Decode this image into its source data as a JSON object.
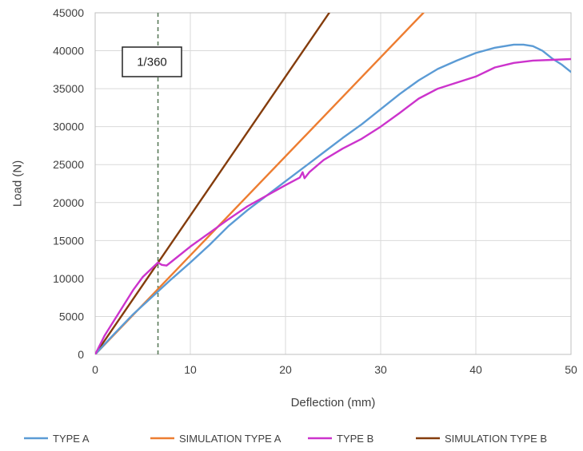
{
  "chart_data": {
    "type": "line",
    "title": "",
    "xlabel": "Deflection (mm)",
    "ylabel": "Load (N)",
    "xlim": [
      0,
      50
    ],
    "ylim": [
      0,
      45000
    ],
    "xticks": [
      0,
      10,
      20,
      30,
      40,
      50
    ],
    "yticks": [
      0,
      5000,
      10000,
      15000,
      20000,
      25000,
      30000,
      35000,
      40000,
      45000
    ],
    "grid": true,
    "legend_position": "bottom",
    "annotation": {
      "label": "1/360",
      "x": 6.6
    },
    "series": [
      {
        "name": "TYPE A",
        "color": "#5b9bd5",
        "x": [
          0,
          2,
          4,
          6,
          8,
          10,
          12,
          14,
          16,
          18,
          20,
          22,
          24,
          26,
          28,
          30,
          32,
          34,
          36,
          38,
          40,
          42,
          44,
          45,
          46,
          47,
          48,
          49,
          50
        ],
        "y": [
          0,
          2700,
          5300,
          7600,
          9900,
          12100,
          14400,
          16900,
          19000,
          20900,
          22800,
          24700,
          26600,
          28500,
          30300,
          32300,
          34300,
          36100,
          37600,
          38700,
          39700,
          40400,
          40800,
          40800,
          40600,
          40000,
          39000,
          38200,
          37200
        ]
      },
      {
        "name": "SIMULATION TYPE A",
        "color": "#ed7d31",
        "x": [
          0,
          34.5
        ],
        "y": [
          0,
          45000
        ]
      },
      {
        "name": "TYPE B",
        "color": "#cc33cc",
        "x": [
          0,
          1,
          2,
          3,
          4,
          5,
          6,
          6.6,
          7,
          7.5,
          8,
          10,
          12,
          14,
          16,
          18,
          20,
          21.5,
          21.8,
          22,
          22.5,
          24,
          26,
          28,
          30,
          32,
          34,
          36,
          38,
          40,
          42,
          44,
          46,
          48,
          50
        ],
        "y": [
          0,
          2500,
          4500,
          6500,
          8500,
          10200,
          11400,
          12100,
          11800,
          11700,
          12200,
          14200,
          16000,
          17800,
          19500,
          20900,
          22300,
          23300,
          24000,
          23200,
          24000,
          25600,
          27100,
          28400,
          30000,
          31800,
          33700,
          35000,
          35800,
          36600,
          37800,
          38400,
          38700,
          38800,
          38900
        ]
      },
      {
        "name": "SIMULATION TYPE B",
        "color": "#843c0c",
        "x": [
          0,
          24.6
        ],
        "y": [
          0,
          45000
        ]
      }
    ]
  }
}
